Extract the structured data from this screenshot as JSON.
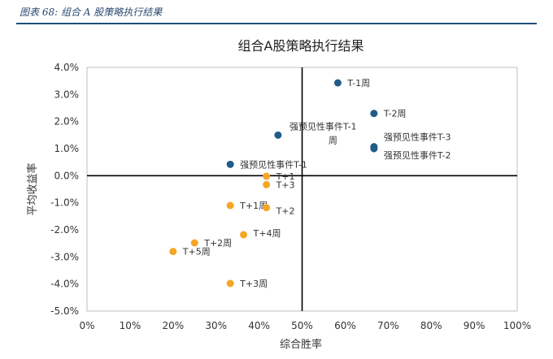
{
  "caption": "图表 68:  组合 A 股策略执行结果",
  "chart_data": {
    "type": "scatter",
    "title": "组合A股策略执行结果",
    "xlabel": "综合胜率",
    "ylabel": "平均收益率",
    "xlim": [
      0,
      100
    ],
    "ylim": [
      -5.0,
      4.0
    ],
    "x_ticks": [
      "0%",
      "10%",
      "20%",
      "30%",
      "40%",
      "50%",
      "60%",
      "70%",
      "80%",
      "90%",
      "100%"
    ],
    "y_ticks": [
      "4.0%",
      "3.0%",
      "2.0%",
      "1.0%",
      "0.0%",
      "-1.0%",
      "-2.0%",
      "-3.0%",
      "-4.0%",
      "-5.0%"
    ],
    "quadrant_lines": {
      "x": 50,
      "y": 0
    },
    "colors": {
      "blue": "#1f5c87",
      "orange": "#f5a623"
    },
    "points": [
      {
        "label": "T-1周",
        "x": 58.3,
        "y": 3.43,
        "color": "blue",
        "pos": "right"
      },
      {
        "label": "T-2周",
        "x": 66.7,
        "y": 2.3,
        "color": "blue",
        "pos": "right"
      },
      {
        "label": "强预见性事件T-1周",
        "x": 44.4,
        "y": 1.5,
        "color": "blue",
        "pos": "split"
      },
      {
        "label": "强预见性事件T-3",
        "x": 66.7,
        "y": 1.07,
        "color": "blue",
        "pos": "upper-right"
      },
      {
        "label": "强预见性事件T-2",
        "x": 66.7,
        "y": 1.0,
        "color": "blue",
        "pos": "lower-right"
      },
      {
        "label": "强预见性事件T-1",
        "x": 33.3,
        "y": 0.42,
        "color": "blue",
        "pos": "right"
      },
      {
        "label": "T+1",
        "x": 41.7,
        "y": -0.02,
        "color": "orange",
        "pos": "right"
      },
      {
        "label": "T+3",
        "x": 41.7,
        "y": -0.33,
        "color": "orange",
        "pos": "right"
      },
      {
        "label": "T+1周",
        "x": 33.3,
        "y": -1.1,
        "color": "orange",
        "pos": "right"
      },
      {
        "label": "T+2",
        "x": 41.7,
        "y": -1.18,
        "color": "orange",
        "pos": "right-down"
      },
      {
        "label": "T+4周",
        "x": 36.4,
        "y": -2.18,
        "color": "orange",
        "pos": "right-up"
      },
      {
        "label": "T+2周",
        "x": 25.0,
        "y": -2.48,
        "color": "orange",
        "pos": "right"
      },
      {
        "label": "T+5周",
        "x": 20.0,
        "y": -2.8,
        "color": "orange",
        "pos": "right"
      },
      {
        "label": "T+3周",
        "x": 33.3,
        "y": -3.98,
        "color": "orange",
        "pos": "right"
      }
    ]
  }
}
